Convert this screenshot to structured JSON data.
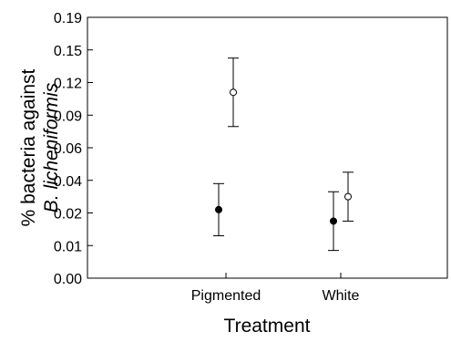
{
  "chart_data": {
    "type": "scatter",
    "xlabel": "Treatment",
    "ylabel": [
      "% bacteria against",
      "B. licheniformis"
    ],
    "categories": [
      "Pigmented",
      "White"
    ],
    "yticks": [
      "0.19",
      "0.15",
      "0.12",
      "0.09",
      "0.06",
      "0.04",
      "0.02",
      "0.01",
      "0.00"
    ],
    "ylim": [
      0,
      8
    ],
    "y_scale_note": "tick labels are evenly spaced in the figure; values below are positions in tick-index units from 0.00",
    "series": [
      {
        "marker": "filled-circle",
        "color": "#000000",
        "points": [
          {
            "category": "Pigmented",
            "mean": 2.1,
            "lower": 1.3,
            "upper": 2.9
          },
          {
            "category": "White",
            "mean": 1.75,
            "lower": 0.85,
            "upper": 2.65
          }
        ]
      },
      {
        "marker": "open-circle",
        "color": "#000000",
        "points": [
          {
            "category": "Pigmented",
            "mean": 5.7,
            "lower": 4.65,
            "upper": 6.75
          },
          {
            "category": "White",
            "mean": 2.5,
            "lower": 1.75,
            "upper": 3.25
          }
        ]
      }
    ]
  }
}
